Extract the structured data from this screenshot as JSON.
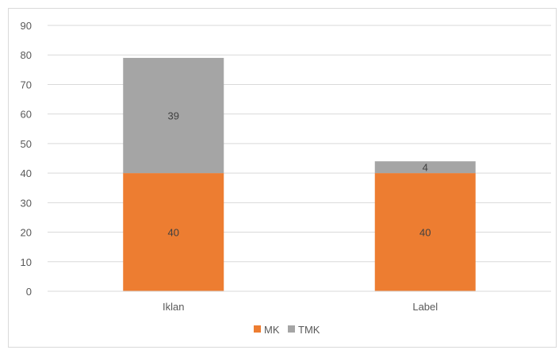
{
  "chart_data": {
    "type": "bar",
    "stacked": true,
    "categories": [
      "Iklan",
      "Label"
    ],
    "series": [
      {
        "name": "MK",
        "values": [
          40,
          40
        ],
        "color": "#ED7D31"
      },
      {
        "name": "TMK",
        "values": [
          39,
          4
        ],
        "color": "#A5A5A5"
      }
    ],
    "ylim": [
      0,
      90
    ],
    "yticks": [
      0,
      10,
      20,
      30,
      40,
      50,
      60,
      70,
      80,
      90
    ],
    "grid": true,
    "legend": "bottom",
    "data_labels": true
  }
}
